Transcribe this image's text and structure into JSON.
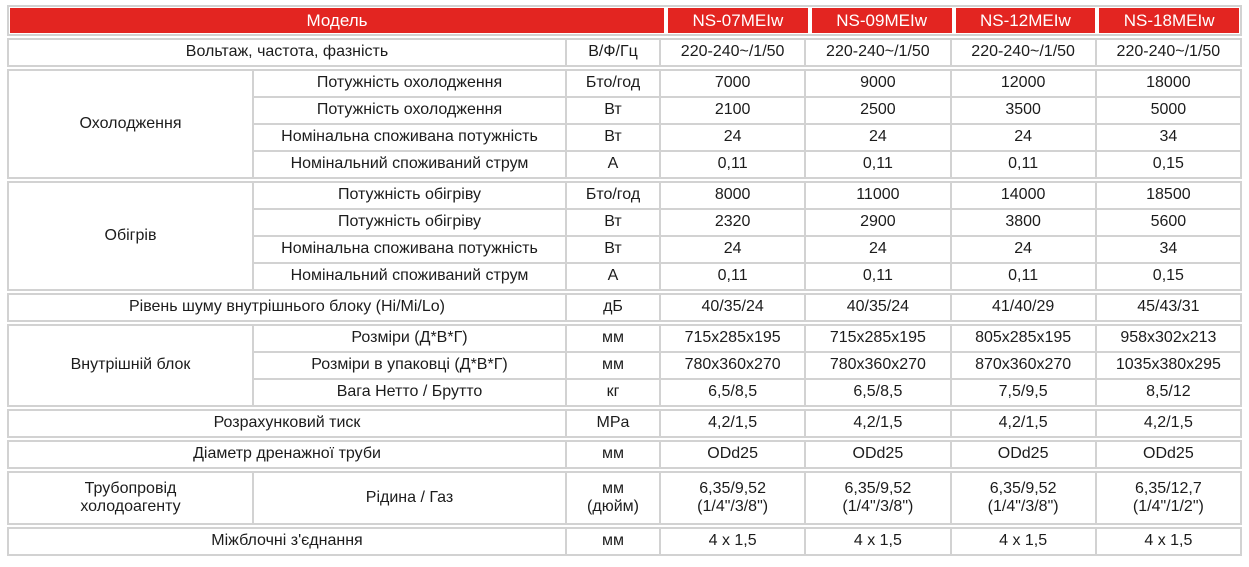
{
  "table": {
    "colors": {
      "header_bg": "#e32521",
      "header_text": "#ffffff",
      "grid_line": "#d2d2d2",
      "body_text": "#1c1c1c"
    },
    "header": {
      "model_label": "Модель",
      "models": [
        "NS-07MEIw",
        "NS-09MEIw",
        "NS-12MEIw",
        "NS-18MEIw"
      ]
    },
    "bands": [
      {
        "name": "voltage",
        "rows": [
          {
            "cells": [
              {
                "text": "Вольтаж, частота, фазність",
                "kind": "rowlabel",
                "span": 2
              },
              {
                "text": "В/Ф/Гц",
                "kind": "unit"
              },
              {
                "text": "220-240~/1/50",
                "kind": "value"
              },
              {
                "text": "220-240~/1/50",
                "kind": "value"
              },
              {
                "text": "220-240~/1/50",
                "kind": "value"
              },
              {
                "text": "220-240~/1/50",
                "kind": "value"
              }
            ]
          }
        ]
      },
      {
        "name": "cooling",
        "group": "Охолодження",
        "rows": [
          {
            "cells": [
              {
                "text": "Потужність охолодження",
                "kind": "sublabel"
              },
              {
                "text": "Бто/год",
                "kind": "unit"
              },
              {
                "text": "7000",
                "kind": "value"
              },
              {
                "text": "9000",
                "kind": "value"
              },
              {
                "text": "12000",
                "kind": "value"
              },
              {
                "text": "18000",
                "kind": "value"
              }
            ]
          },
          {
            "cells": [
              {
                "text": "Потужність охолодження",
                "kind": "sublabel"
              },
              {
                "text": "Вт",
                "kind": "unit"
              },
              {
                "text": "2100",
                "kind": "value"
              },
              {
                "text": "2500",
                "kind": "value"
              },
              {
                "text": "3500",
                "kind": "value"
              },
              {
                "text": "5000",
                "kind": "value"
              }
            ]
          },
          {
            "cells": [
              {
                "text": "Номінальна споживана потужність",
                "kind": "sublabel"
              },
              {
                "text": "Вт",
                "kind": "unit"
              },
              {
                "text": "24",
                "kind": "value"
              },
              {
                "text": "24",
                "kind": "value"
              },
              {
                "text": "24",
                "kind": "value"
              },
              {
                "text": "34",
                "kind": "value"
              }
            ]
          },
          {
            "cells": [
              {
                "text": "Номінальний споживаний струм",
                "kind": "sublabel"
              },
              {
                "text": "А",
                "kind": "unit"
              },
              {
                "text": "0,11",
                "kind": "value"
              },
              {
                "text": "0,11",
                "kind": "value"
              },
              {
                "text": "0,11",
                "kind": "value"
              },
              {
                "text": "0,15",
                "kind": "value"
              }
            ]
          }
        ]
      },
      {
        "name": "heating",
        "group": "Обігрів",
        "rows": [
          {
            "cells": [
              {
                "text": "Потужність обігріву",
                "kind": "sublabel"
              },
              {
                "text": "Бто/год",
                "kind": "unit"
              },
              {
                "text": "8000",
                "kind": "value"
              },
              {
                "text": "11000",
                "kind": "value"
              },
              {
                "text": "14000",
                "kind": "value"
              },
              {
                "text": "18500",
                "kind": "value"
              }
            ]
          },
          {
            "cells": [
              {
                "text": "Потужність обігріву",
                "kind": "sublabel"
              },
              {
                "text": "Вт",
                "kind": "unit"
              },
              {
                "text": "2320",
                "kind": "value"
              },
              {
                "text": "2900",
                "kind": "value"
              },
              {
                "text": "3800",
                "kind": "value"
              },
              {
                "text": "5600",
                "kind": "value"
              }
            ]
          },
          {
            "cells": [
              {
                "text": "Номінальна споживана потужність",
                "kind": "sublabel"
              },
              {
                "text": "Вт",
                "kind": "unit"
              },
              {
                "text": "24",
                "kind": "value"
              },
              {
                "text": "24",
                "kind": "value"
              },
              {
                "text": "24",
                "kind": "value"
              },
              {
                "text": "34",
                "kind": "value"
              }
            ]
          },
          {
            "cells": [
              {
                "text": "Номінальний споживаний струм",
                "kind": "sublabel"
              },
              {
                "text": "А",
                "kind": "unit"
              },
              {
                "text": "0,11",
                "kind": "value"
              },
              {
                "text": "0,11",
                "kind": "value"
              },
              {
                "text": "0,11",
                "kind": "value"
              },
              {
                "text": "0,15",
                "kind": "value"
              }
            ]
          }
        ]
      },
      {
        "name": "noise",
        "rows": [
          {
            "cells": [
              {
                "text": "Рівень шуму внутрішнього блоку (Hi/Mi/Lo)",
                "kind": "rowlabel",
                "span": 2
              },
              {
                "text": "дБ",
                "kind": "unit"
              },
              {
                "text": "40/35/24",
                "kind": "value"
              },
              {
                "text": "40/35/24",
                "kind": "value"
              },
              {
                "text": "41/40/29",
                "kind": "value"
              },
              {
                "text": "45/43/31",
                "kind": "value"
              }
            ]
          }
        ]
      },
      {
        "name": "indoor-unit",
        "group": "Внутрішній блок",
        "rows": [
          {
            "cells": [
              {
                "text": "Розміри (Д*В*Г)",
                "kind": "sublabel"
              },
              {
                "text": "мм",
                "kind": "unit"
              },
              {
                "text": "715x285x195",
                "kind": "value"
              },
              {
                "text": "715x285x195",
                "kind": "value"
              },
              {
                "text": "805x285x195",
                "kind": "value"
              },
              {
                "text": "958x302x213",
                "kind": "value"
              }
            ]
          },
          {
            "cells": [
              {
                "text": "Розміри в упаковці (Д*В*Г)",
                "kind": "sublabel"
              },
              {
                "text": "мм",
                "kind": "unit"
              },
              {
                "text": "780x360x270",
                "kind": "value"
              },
              {
                "text": "780x360x270",
                "kind": "value"
              },
              {
                "text": "870x360x270",
                "kind": "value"
              },
              {
                "text": "1035x380x295",
                "kind": "value"
              }
            ]
          },
          {
            "cells": [
              {
                "text": "Вага Нетто / Брутто",
                "kind": "sublabel"
              },
              {
                "text": "кг",
                "kind": "unit"
              },
              {
                "text": "6,5/8,5",
                "kind": "value"
              },
              {
                "text": "6,5/8,5",
                "kind": "value"
              },
              {
                "text": "7,5/9,5",
                "kind": "value"
              },
              {
                "text": "8,5/12",
                "kind": "value"
              }
            ]
          }
        ]
      },
      {
        "name": "design-pressure",
        "rows": [
          {
            "cells": [
              {
                "text": "Розрахунковий тиск",
                "kind": "rowlabel",
                "span": 2
              },
              {
                "text": "MPa",
                "kind": "unit"
              },
              {
                "text": "4,2/1,5",
                "kind": "value"
              },
              {
                "text": "4,2/1,5",
                "kind": "value"
              },
              {
                "text": "4,2/1,5",
                "kind": "value"
              },
              {
                "text": "4,2/1,5",
                "kind": "value"
              }
            ]
          }
        ]
      },
      {
        "name": "drain-pipe",
        "rows": [
          {
            "cells": [
              {
                "text": "Діаметр дренажної труби",
                "kind": "rowlabel",
                "span": 2
              },
              {
                "text": "мм",
                "kind": "unit"
              },
              {
                "text": "ODd25",
                "kind": "value"
              },
              {
                "text": "ODd25",
                "kind": "value"
              },
              {
                "text": "ODd25",
                "kind": "value"
              },
              {
                "text": "ODd25",
                "kind": "value"
              }
            ]
          }
        ]
      },
      {
        "name": "refrigerant-piping",
        "group": "Трубопровід\nхолодоагенту",
        "tall": true,
        "rows": [
          {
            "cells": [
              {
                "text": "Рідина / Газ",
                "kind": "sublabel"
              },
              {
                "text": "мм\n(дюйм)",
                "kind": "unit"
              },
              {
                "text": "6,35/9,52\n(1/4\"/3/8\")",
                "kind": "value"
              },
              {
                "text": "6,35/9,52\n(1/4\"/3/8\")",
                "kind": "value"
              },
              {
                "text": "6,35/9,52\n(1/4\"/3/8\")",
                "kind": "value"
              },
              {
                "text": "6,35/12,7\n(1/4\"/1/2\")",
                "kind": "value"
              }
            ]
          }
        ]
      },
      {
        "name": "interconnect",
        "rows": [
          {
            "cells": [
              {
                "text": "Міжблочні з'єднання",
                "kind": "rowlabel",
                "span": 2
              },
              {
                "text": "мм",
                "kind": "unit"
              },
              {
                "text": "4 x 1,5",
                "kind": "value"
              },
              {
                "text": "4 x 1,5",
                "kind": "value"
              },
              {
                "text": "4 x 1,5",
                "kind": "value"
              },
              {
                "text": "4 x 1,5",
                "kind": "value"
              }
            ]
          }
        ]
      }
    ]
  }
}
